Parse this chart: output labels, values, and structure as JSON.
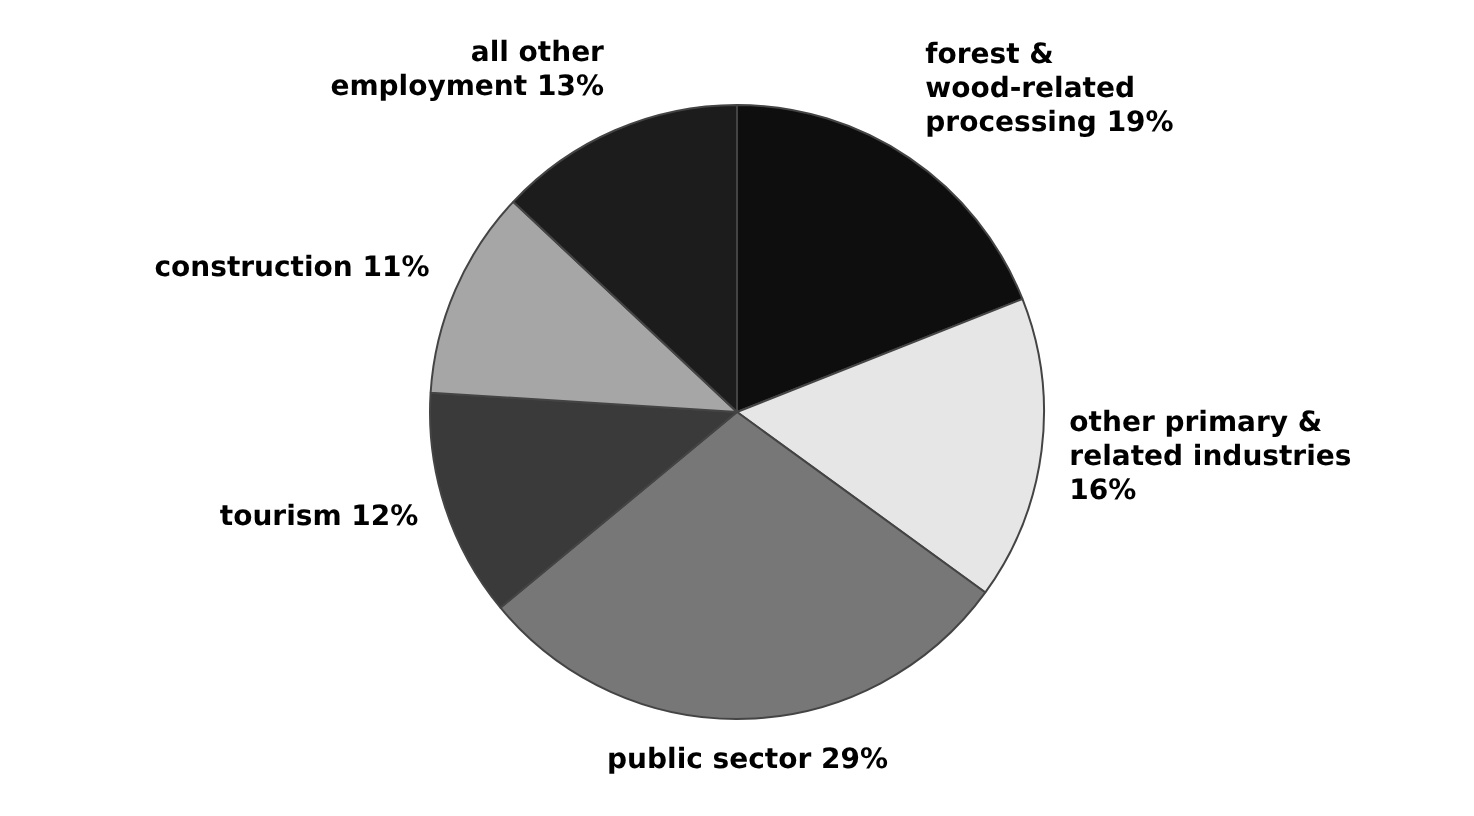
{
  "chart_data": {
    "type": "pie",
    "categories": [
      "forest & wood-related processing",
      "other primary & related industries",
      "public sector",
      "tourism",
      "construction",
      "all other employment"
    ],
    "values": [
      19,
      16,
      29,
      12,
      11,
      13
    ],
    "value_labels": [
      "19%",
      "16%",
      "29%",
      "12%",
      "11%",
      "13%"
    ],
    "colors": [
      "#0e0e0e",
      "#e6e6e6",
      "#777777",
      "#3a3a3a",
      "#a6a6a6",
      "#1c1c1c"
    ],
    "legend": false
  }
}
